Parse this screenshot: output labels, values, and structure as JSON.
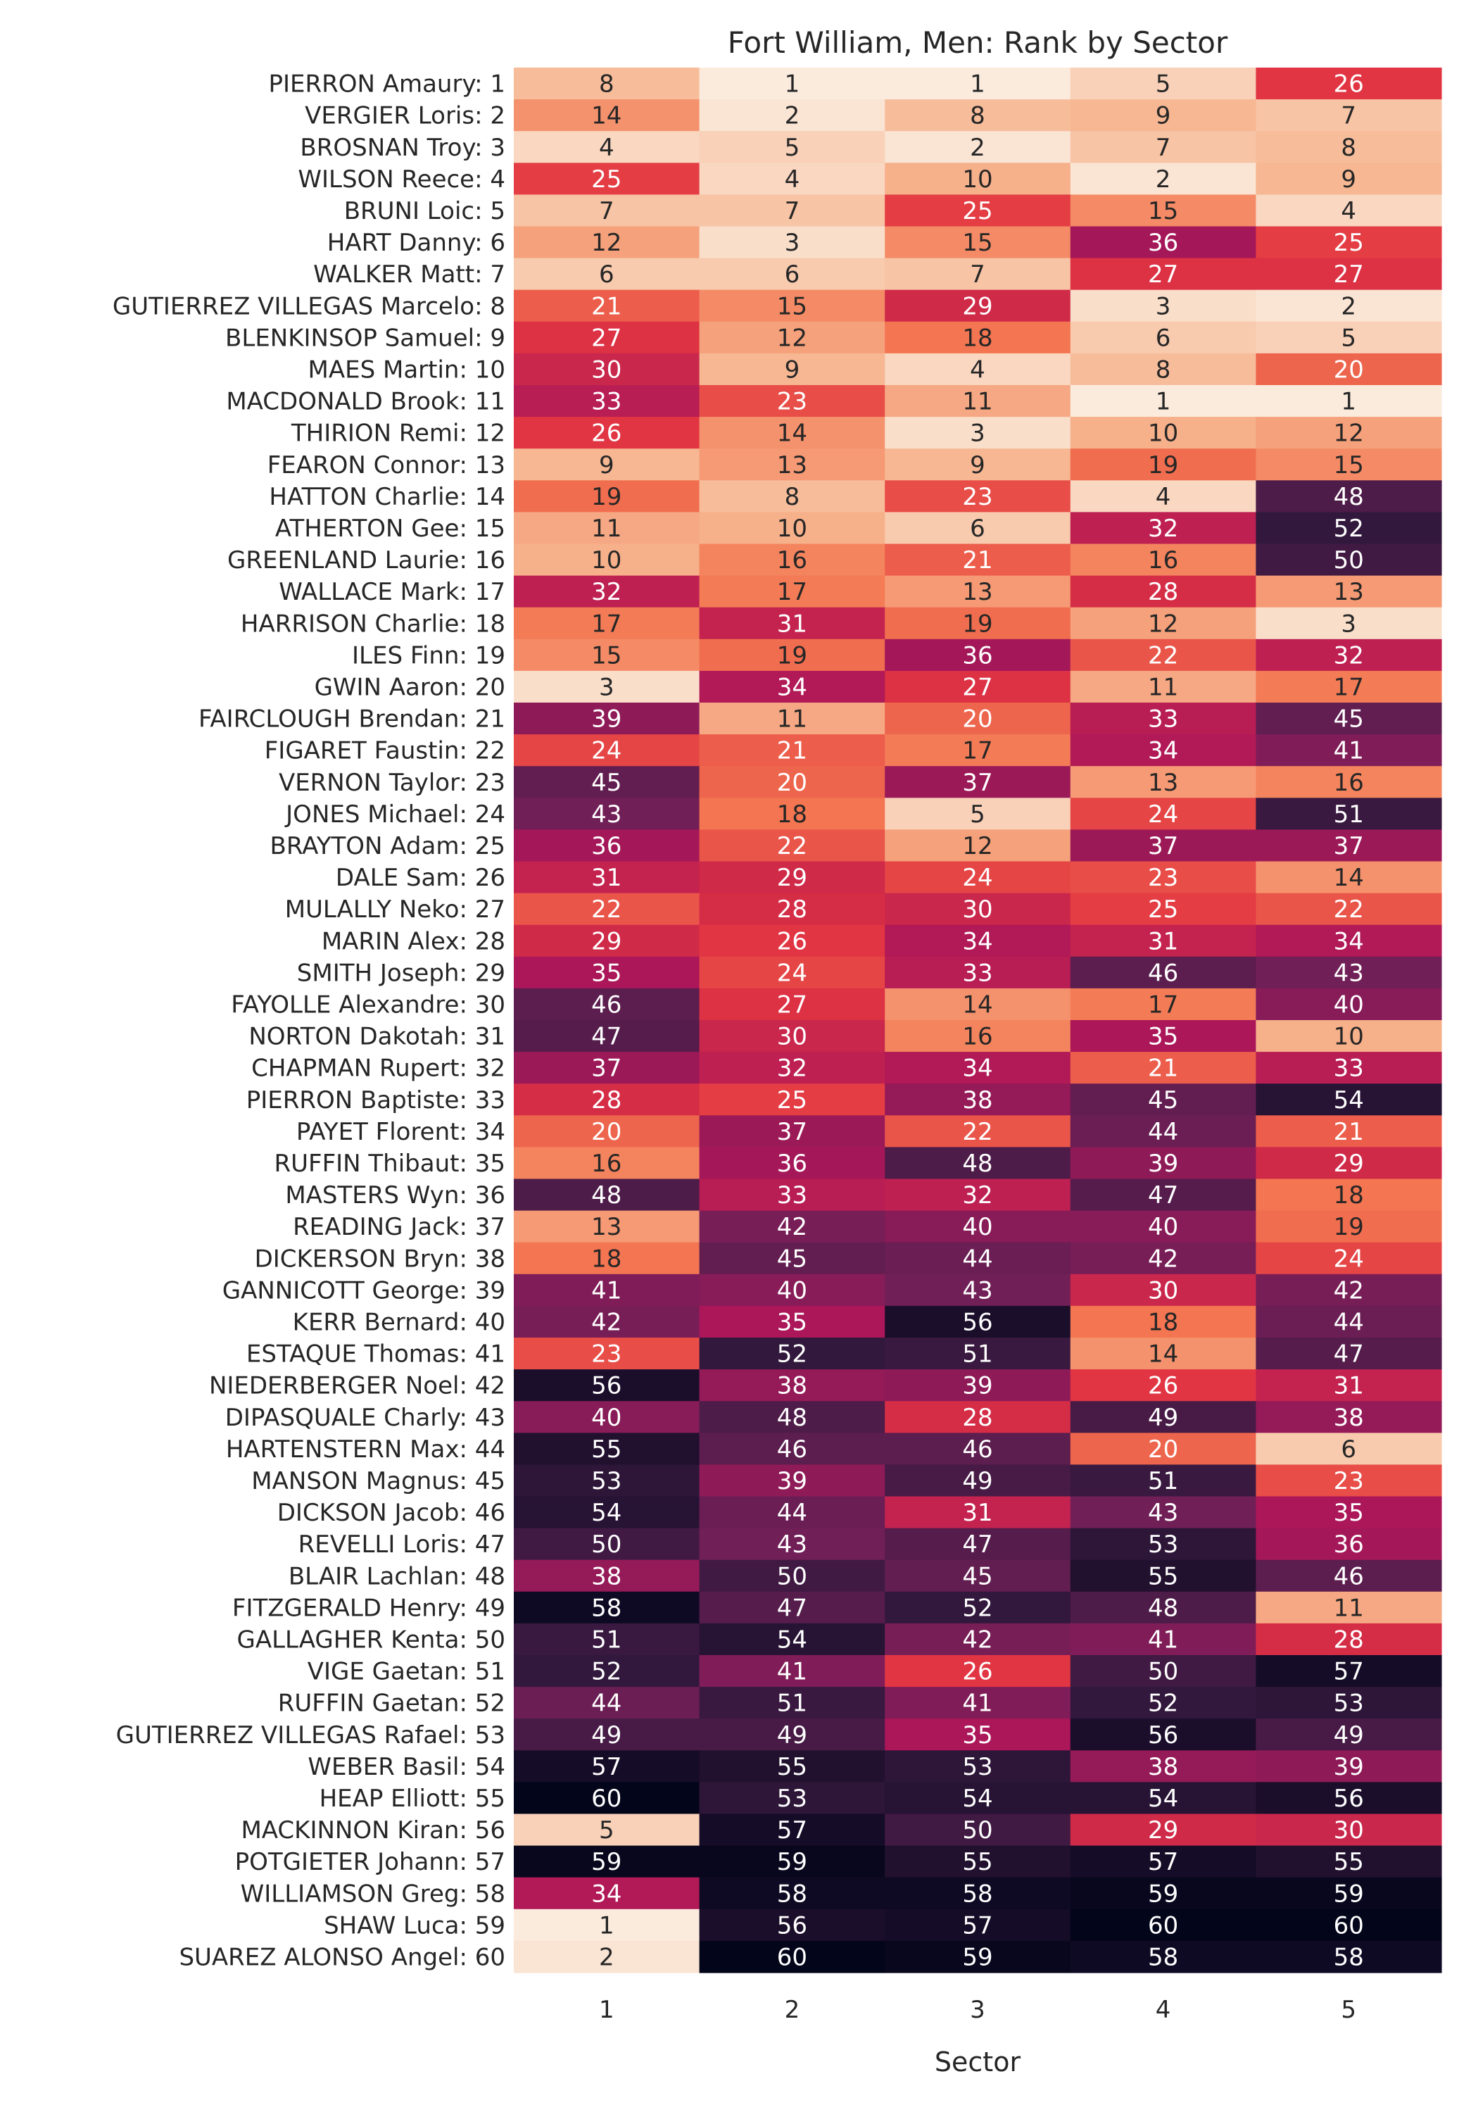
{
  "chart_data": {
    "type": "heatmap",
    "title": "Fort William, Men: Rank by Sector",
    "xlabel": "Sector",
    "ylabel": "",
    "columns": [
      "1",
      "2",
      "3",
      "4",
      "5"
    ],
    "rows": [
      "PIERRON Amaury: 1",
      "VERGIER Loris: 2",
      "BROSNAN Troy: 3",
      "WILSON Reece: 4",
      "BRUNI Loic: 5",
      "HART Danny: 6",
      "WALKER Matt: 7",
      "GUTIERREZ VILLEGAS Marcelo: 8",
      "BLENKINSOP Samuel: 9",
      "MAES Martin: 10",
      "MACDONALD Brook: 11",
      "THIRION Remi: 12",
      "FEARON Connor: 13",
      "HATTON Charlie: 14",
      "ATHERTON Gee: 15",
      "GREENLAND Laurie: 16",
      "WALLACE Mark: 17",
      "HARRISON Charlie: 18",
      "ILES Finn: 19",
      "GWIN Aaron: 20",
      "FAIRCLOUGH Brendan: 21",
      "FIGARET Faustin: 22",
      "VERNON Taylor: 23",
      "JONES Michael: 24",
      "BRAYTON Adam: 25",
      "DALE Sam: 26",
      "MULALLY Neko: 27",
      "MARIN Alex: 28",
      "SMITH Joseph: 29",
      "FAYOLLE Alexandre: 30",
      "NORTON Dakotah: 31",
      "CHAPMAN Rupert: 32",
      "PIERRON Baptiste: 33",
      "PAYET Florent: 34",
      "RUFFIN Thibaut: 35",
      "MASTERS Wyn: 36",
      "READING Jack: 37",
      "DICKERSON Bryn: 38",
      "GANNICOTT George: 39",
      "KERR Bernard: 40",
      "ESTAQUE Thomas: 41",
      "NIEDERBERGER Noel: 42",
      "DIPASQUALE Charly: 43",
      "HARTENSTERN Max: 44",
      "MANSON Magnus: 45",
      "DICKSON Jacob: 46",
      "REVELLI Loris: 47",
      "BLAIR Lachlan: 48",
      "FITZGERALD Henry: 49",
      "GALLAGHER Kenta: 50",
      "VIGE Gaetan: 51",
      "RUFFIN Gaetan: 52",
      "GUTIERREZ VILLEGAS Rafael: 53",
      "WEBER Basil: 54",
      "HEAP Elliott: 55",
      "MACKINNON Kiran: 56",
      "POTGIETER Johann: 57",
      "WILLIAMSON Greg: 58",
      "SHAW Luca: 59",
      "SUAREZ ALONSO Angel: 60"
    ],
    "values": [
      [
        8,
        1,
        1,
        5,
        26
      ],
      [
        14,
        2,
        8,
        9,
        7
      ],
      [
        4,
        5,
        2,
        7,
        8
      ],
      [
        25,
        4,
        10,
        2,
        9
      ],
      [
        7,
        7,
        25,
        15,
        4
      ],
      [
        12,
        3,
        15,
        36,
        25
      ],
      [
        6,
        6,
        7,
        27,
        27
      ],
      [
        21,
        15,
        29,
        3,
        2
      ],
      [
        27,
        12,
        18,
        6,
        5
      ],
      [
        30,
        9,
        4,
        8,
        20
      ],
      [
        33,
        23,
        11,
        1,
        1
      ],
      [
        26,
        14,
        3,
        10,
        12
      ],
      [
        9,
        13,
        9,
        19,
        15
      ],
      [
        19,
        8,
        23,
        4,
        48
      ],
      [
        11,
        10,
        6,
        32,
        52
      ],
      [
        10,
        16,
        21,
        16,
        50
      ],
      [
        32,
        17,
        13,
        28,
        13
      ],
      [
        17,
        31,
        19,
        12,
        3
      ],
      [
        15,
        19,
        36,
        22,
        32
      ],
      [
        3,
        34,
        27,
        11,
        17
      ],
      [
        39,
        11,
        20,
        33,
        45
      ],
      [
        24,
        21,
        17,
        34,
        41
      ],
      [
        45,
        20,
        37,
        13,
        16
      ],
      [
        43,
        18,
        5,
        24,
        51
      ],
      [
        36,
        22,
        12,
        37,
        37
      ],
      [
        31,
        29,
        24,
        23,
        14
      ],
      [
        22,
        28,
        30,
        25,
        22
      ],
      [
        29,
        26,
        34,
        31,
        34
      ],
      [
        35,
        24,
        33,
        46,
        43
      ],
      [
        46,
        27,
        14,
        17,
        40
      ],
      [
        47,
        30,
        16,
        35,
        10
      ],
      [
        37,
        32,
        34,
        21,
        33
      ],
      [
        28,
        25,
        38,
        45,
        54
      ],
      [
        20,
        37,
        22,
        44,
        21
      ],
      [
        16,
        36,
        48,
        39,
        29
      ],
      [
        48,
        33,
        32,
        47,
        18
      ],
      [
        13,
        42,
        40,
        40,
        19
      ],
      [
        18,
        45,
        44,
        42,
        24
      ],
      [
        41,
        40,
        43,
        30,
        42
      ],
      [
        42,
        35,
        56,
        18,
        44
      ],
      [
        23,
        52,
        51,
        14,
        47
      ],
      [
        56,
        38,
        39,
        26,
        31
      ],
      [
        40,
        48,
        28,
        49,
        38
      ],
      [
        55,
        46,
        46,
        20,
        6
      ],
      [
        53,
        39,
        49,
        51,
        23
      ],
      [
        54,
        44,
        31,
        43,
        35
      ],
      [
        50,
        43,
        47,
        53,
        36
      ],
      [
        38,
        50,
        45,
        55,
        46
      ],
      [
        58,
        47,
        52,
        48,
        11
      ],
      [
        51,
        54,
        42,
        41,
        28
      ],
      [
        52,
        41,
        26,
        50,
        57
      ],
      [
        44,
        51,
        41,
        52,
        53
      ],
      [
        49,
        49,
        35,
        56,
        49
      ],
      [
        57,
        55,
        53,
        38,
        39
      ],
      [
        60,
        53,
        54,
        54,
        56
      ],
      [
        5,
        57,
        50,
        29,
        30
      ],
      [
        59,
        59,
        55,
        57,
        55
      ],
      [
        34,
        58,
        58,
        59,
        59
      ],
      [
        1,
        56,
        57,
        60,
        60
      ],
      [
        2,
        60,
        59,
        58,
        58
      ]
    ],
    "value_range": [
      1,
      60
    ],
    "colormap": [
      "#faebdd",
      "#f6b48e",
      "#f37651",
      "#e13342",
      "#ad1759",
      "#701f57",
      "#35193e",
      "#03051a"
    ],
    "annotations": true,
    "grid": false,
    "legend": "none"
  }
}
